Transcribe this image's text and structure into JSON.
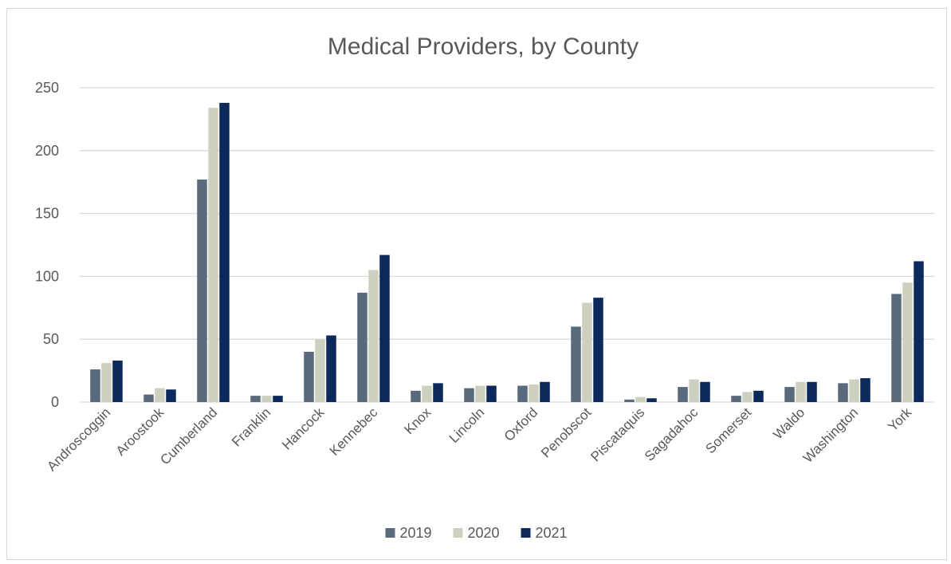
{
  "chart_data": {
    "type": "bar",
    "title": "Medical Providers, by County",
    "xlabel": "",
    "ylabel": "",
    "ylim": [
      0,
      250
    ],
    "yticks": [
      0,
      50,
      100,
      150,
      200,
      250
    ],
    "grid": true,
    "legend_position": "bottom",
    "categories": [
      "Androscoggin",
      "Aroostook",
      "Cumberland",
      "Franklin",
      "Hancock",
      "Kennebec",
      "Knox",
      "Lincoln",
      "Oxford",
      "Penobscot",
      "Piscataquis",
      "Sagadahoc",
      "Somerset",
      "Waldo",
      "Washington",
      "York"
    ],
    "series": [
      {
        "name": "2019",
        "color": "#5a6a7d",
        "values": [
          26,
          6,
          177,
          5,
          40,
          87,
          9,
          11,
          13,
          60,
          2,
          12,
          5,
          12,
          15,
          86
        ]
      },
      {
        "name": "2020",
        "color": "#cfcfbf",
        "values": [
          31,
          11,
          234,
          5,
          50,
          105,
          13,
          13,
          14,
          79,
          4,
          18,
          8,
          16,
          18,
          95
        ]
      },
      {
        "name": "2021",
        "color": "#0b2a5b",
        "values": [
          33,
          10,
          238,
          5,
          53,
          117,
          15,
          13,
          16,
          83,
          3,
          16,
          9,
          16,
          19,
          112
        ]
      }
    ]
  }
}
